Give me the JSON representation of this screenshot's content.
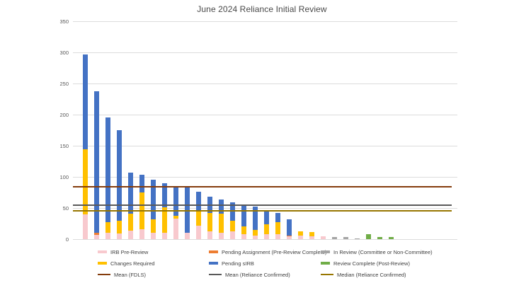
{
  "chart_data": {
    "type": "bar",
    "stacked": true,
    "title": "June 2024 Reliance Initial Review",
    "title_color": "#484848",
    "gridline_color": "#dcdcdc",
    "axis_label_color": "#595959",
    "grid": true,
    "legend_position": "bottom",
    "ylim": [
      0,
      350
    ],
    "yticks": [
      0,
      50,
      100,
      150,
      200,
      250,
      300,
      350
    ],
    "x_axis": {
      "labels_visible": false,
      "bar_count": 28
    },
    "series": [
      {
        "name": "IRB Pre-Review",
        "color": "#f8c9ce",
        "values": [
          40,
          7,
          10,
          9,
          14,
          16,
          10,
          10,
          33,
          10,
          22,
          12,
          10,
          12,
          8,
          6,
          8,
          8,
          4,
          6,
          4,
          5,
          0,
          0,
          0,
          0,
          0,
          0
        ]
      },
      {
        "name": "Pending Assignment (Pre-Review Complete)",
        "color": "#ed7d31",
        "values": [
          0,
          3,
          0,
          0,
          0,
          0,
          0,
          0,
          0,
          0,
          0,
          0,
          0,
          0,
          0,
          0,
          0,
          0,
          2,
          0,
          0,
          0,
          0,
          0,
          0,
          0,
          0,
          0
        ]
      },
      {
        "name": "In Review (Committee or Non-Committee)",
        "color": "#a5a5a5",
        "values": [
          0,
          0,
          0,
          0,
          0,
          0,
          0,
          0,
          0,
          0,
          0,
          0,
          0,
          0,
          0,
          0,
          0,
          0,
          0,
          0,
          0,
          0,
          3,
          3,
          1,
          0,
          0,
          0
        ]
      },
      {
        "name": "Changes Required",
        "color": "#ffc000",
        "values": [
          104,
          0,
          17,
          20,
          27,
          59,
          22,
          41,
          5,
          0,
          23,
          30,
          31,
          17,
          12,
          9,
          16,
          19,
          0,
          7,
          7,
          0,
          0,
          0,
          0,
          0,
          0,
          0
        ]
      },
      {
        "name": "Pending sIRB",
        "color": "#4472c4",
        "values": [
          153,
          227,
          168,
          146,
          66,
          28,
          63,
          39,
          47,
          74,
          31,
          26,
          23,
          30,
          35,
          37,
          21,
          15,
          26,
          0,
          0,
          0,
          0,
          0,
          0,
          0,
          0,
          0
        ]
      },
      {
        "name": "Review Complete (Post-Review)",
        "color": "#70ad47",
        "values": [
          0,
          0,
          0,
          0,
          0,
          0,
          0,
          0,
          0,
          0,
          0,
          0,
          0,
          0,
          0,
          0,
          0,
          0,
          0,
          0,
          0,
          0,
          0,
          0,
          0,
          8,
          3,
          3
        ]
      }
    ],
    "lines": [
      {
        "name": "Mean (FDLS)",
        "color": "#843c0c",
        "value": 84
      },
      {
        "name": "Mean (Reliance Confirmed)",
        "color": "#595959",
        "value": 55
      },
      {
        "name": "Median (Reliance Confirmed)",
        "color": "#977600",
        "value": 46
      }
    ],
    "legend_columns": [
      [
        {
          "label": "IRB Pre-Review",
          "marker": "bar",
          "color": "#f8c9ce"
        },
        {
          "label": "Changes Required",
          "marker": "bar",
          "color": "#ffc000"
        },
        {
          "label": "Mean (FDLS)",
          "marker": "line",
          "color": "#843c0c"
        }
      ],
      [
        {
          "label": "Pending Assignment (Pre-Review Complete)",
          "marker": "bar",
          "color": "#ed7d31"
        },
        {
          "label": "Pending sIRB",
          "marker": "bar",
          "color": "#4472c4"
        },
        {
          "label": "Mean (Reliance Confirmed)",
          "marker": "line",
          "color": "#595959"
        }
      ],
      [
        {
          "label": "In Review (Committee or Non-Committee)",
          "marker": "bar",
          "color": "#a5a5a5"
        },
        {
          "label": "Review Complete (Post-Review)",
          "marker": "bar",
          "color": "#70ad47"
        },
        {
          "label": "Median (Reliance Confirmed)",
          "marker": "line",
          "color": "#977600"
        }
      ]
    ]
  }
}
